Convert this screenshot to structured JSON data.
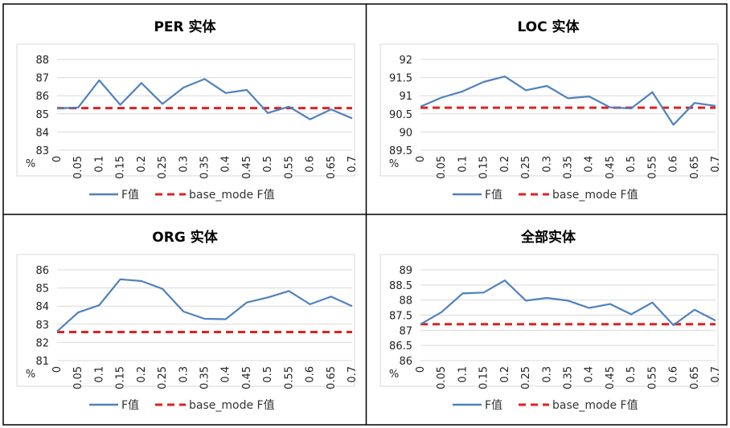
{
  "chart_data": [
    {
      "type": "line",
      "title": "PER 实体",
      "ylabel": "%",
      "categories": [
        "0",
        "0.05",
        "0.1",
        "0.15",
        "0.2",
        "0.25",
        "0.3",
        "0.35",
        "0.4",
        "0.45",
        "0.5",
        "0.55",
        "0.6",
        "0.65",
        "0.7"
      ],
      "yticks": [
        "83",
        "84",
        "85",
        "86",
        "87",
        "88"
      ],
      "ylim": [
        83,
        88
      ],
      "grid": true,
      "legend_position": "bottom",
      "series": [
        {
          "name": "F值",
          "color": "#4f81bd",
          "style": "solid",
          "values": [
            85.3,
            85.35,
            86.85,
            85.5,
            86.7,
            85.55,
            86.45,
            86.92,
            86.15,
            86.32,
            85.05,
            85.4,
            84.7,
            85.25,
            84.75
          ]
        },
        {
          "name": "base_mode F值",
          "color": "#e02020",
          "style": "dashed",
          "values": [
            85.32,
            85.32,
            85.32,
            85.32,
            85.32,
            85.32,
            85.32,
            85.32,
            85.32,
            85.32,
            85.32,
            85.32,
            85.32,
            85.32,
            85.32
          ]
        }
      ]
    },
    {
      "type": "line",
      "title": "LOC 实体",
      "ylabel": "%",
      "categories": [
        "0",
        "0.05",
        "0.1",
        "0.15",
        "0.2",
        "0.25",
        "0.3",
        "0.35",
        "0.4",
        "0.45",
        "0.5",
        "0.55",
        "0.6",
        "0.65",
        "0.7"
      ],
      "yticks": [
        "89.5",
        "90",
        "90.5",
        "91",
        "91.5",
        "92"
      ],
      "ylim": [
        89.5,
        92
      ],
      "grid": true,
      "legend_position": "bottom",
      "series": [
        {
          "name": "F值",
          "color": "#4f81bd",
          "style": "solid",
          "values": [
            90.7,
            90.95,
            91.12,
            91.38,
            91.53,
            91.15,
            91.27,
            90.93,
            90.98,
            90.68,
            90.65,
            91.1,
            90.2,
            90.8,
            90.72
          ]
        },
        {
          "name": "base_mode F值",
          "color": "#e02020",
          "style": "dashed",
          "values": [
            90.67,
            90.67,
            90.67,
            90.67,
            90.67,
            90.67,
            90.67,
            90.67,
            90.67,
            90.67,
            90.67,
            90.67,
            90.67,
            90.67,
            90.67
          ]
        }
      ]
    },
    {
      "type": "line",
      "title": "ORG 实体",
      "ylabel": "%",
      "categories": [
        "0",
        "0.05",
        "0.1",
        "0.15",
        "0.2",
        "0.25",
        "0.3",
        "0.35",
        "0.4",
        "0.45",
        "0.5",
        "0.55",
        "0.6",
        "0.65",
        "0.7"
      ],
      "yticks": [
        "81",
        "82",
        "83",
        "84",
        "85",
        "86"
      ],
      "ylim": [
        81,
        86
      ],
      "grid": true,
      "legend_position": "bottom",
      "series": [
        {
          "name": "F值",
          "color": "#4f81bd",
          "style": "solid",
          "values": [
            82.6,
            83.65,
            84.05,
            85.48,
            85.38,
            84.95,
            83.7,
            83.3,
            83.28,
            84.2,
            84.48,
            84.83,
            84.1,
            84.52,
            84.0
          ]
        },
        {
          "name": "base_mode F值",
          "color": "#e02020",
          "style": "dashed",
          "values": [
            82.57,
            82.57,
            82.57,
            82.57,
            82.57,
            82.57,
            82.57,
            82.57,
            82.57,
            82.57,
            82.57,
            82.57,
            82.57,
            82.57,
            82.57
          ]
        }
      ]
    },
    {
      "type": "line",
      "title": "全部实体",
      "ylabel": "%",
      "categories": [
        "0",
        "0.05",
        "0.1",
        "0.15",
        "0.2",
        "0.25",
        "0.3",
        "0.35",
        "0.4",
        "0.45",
        "0.5",
        "0.55",
        "0.6",
        "0.65",
        "0.7"
      ],
      "yticks": [
        "86",
        "86.5",
        "87",
        "87.5",
        "88",
        "88.5",
        "89"
      ],
      "ylim": [
        86,
        89
      ],
      "grid": true,
      "legend_position": "bottom",
      "series": [
        {
          "name": "F值",
          "color": "#4f81bd",
          "style": "solid",
          "values": [
            87.2,
            87.6,
            88.22,
            88.25,
            88.65,
            87.98,
            88.07,
            87.98,
            87.74,
            87.87,
            87.53,
            87.92,
            87.17,
            87.68,
            87.32
          ]
        },
        {
          "name": "base_mode F值",
          "color": "#e02020",
          "style": "dashed",
          "values": [
            87.2,
            87.2,
            87.2,
            87.2,
            87.2,
            87.2,
            87.2,
            87.2,
            87.2,
            87.2,
            87.2,
            87.2,
            87.2,
            87.2,
            87.2
          ]
        }
      ]
    }
  ]
}
